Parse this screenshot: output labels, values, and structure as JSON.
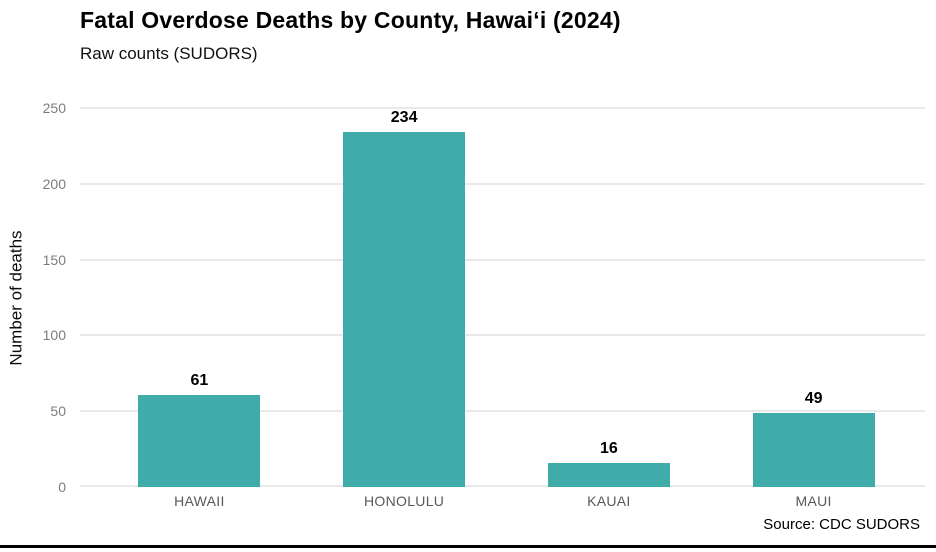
{
  "chart_data": {
    "type": "bar",
    "title": "Fatal Overdose Deaths by County, Hawaiʻi (2024)",
    "subtitle": "Raw counts (SUDORS)",
    "categories": [
      "HAWAII",
      "HONOLULU",
      "KAUAI",
      "MAUI"
    ],
    "values": [
      61,
      234,
      16,
      49
    ],
    "value_labels": [
      61,
      234,
      16,
      49
    ],
    "xlabel": "",
    "ylabel": "Number of deaths",
    "ylim": [
      0,
      250
    ],
    "yticks": [
      0,
      50,
      100,
      150,
      200,
      250
    ],
    "grid": "horizontal-only",
    "legend": "none",
    "source": "Source: CDC SUDORS"
  },
  "colors": {
    "bar_fill": "#3FACA9",
    "gridline": "#E9E9E9",
    "y_tick_label": "#7D7D7D",
    "x_tick_label": "#595959",
    "text": "#000000",
    "background": "#FFFFFF",
    "bottom_rule": "#000000"
  }
}
